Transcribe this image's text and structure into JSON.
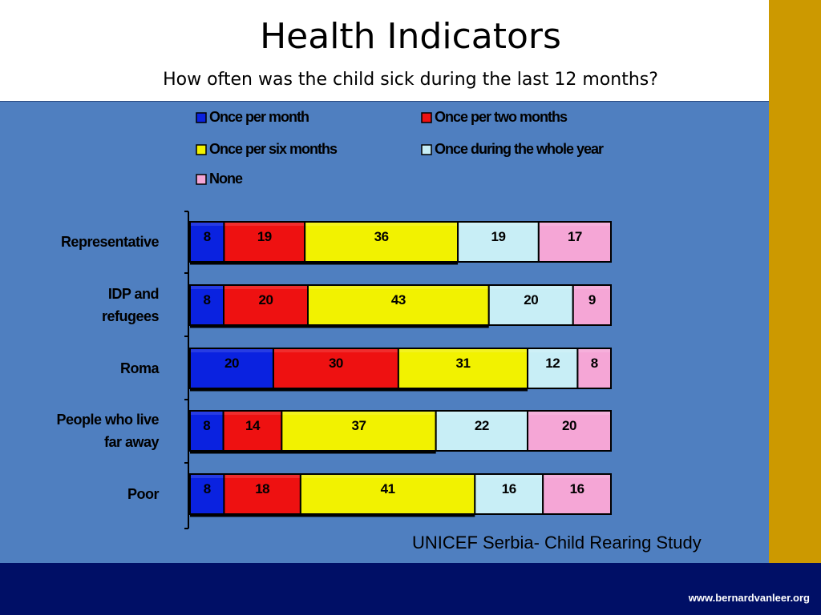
{
  "title": "Health Indicators",
  "subtitle": "How often was the child sick during the last 12 months?",
  "source": "UNICEF Serbia- Child Rearing Study",
  "footer_url": "www.bernardvanleer.org",
  "colors": {
    "background_panel": "#4f7fc0",
    "header_bg": "#ffffff",
    "accent_gold": "#cc9900",
    "footer_bg": "#000f66"
  },
  "chart_data": {
    "type": "bar",
    "orientation": "horizontal",
    "stacked": true,
    "categories": [
      [
        "Representative"
      ],
      [
        "IDP and",
        "refugees"
      ],
      [
        "Roma"
      ],
      [
        "People who live",
        "far away"
      ],
      [
        "Poor"
      ]
    ],
    "series": [
      {
        "name": "Once per month",
        "color": "#0a22e0",
        "values": [
          8,
          8,
          20,
          8,
          8
        ]
      },
      {
        "name": "Once per two months",
        "color": "#ee1111",
        "values": [
          19,
          20,
          30,
          14,
          18
        ]
      },
      {
        "name": "Once per six months",
        "color": "#f2f200",
        "values": [
          36,
          43,
          31,
          37,
          41
        ]
      },
      {
        "name": "Once during the whole year",
        "color": "#c8eef6",
        "values": [
          19,
          20,
          12,
          22,
          16
        ]
      },
      {
        "name": "None",
        "color": "#f5a6d6",
        "values": [
          17,
          9,
          8,
          20,
          16
        ]
      }
    ],
    "legend_position": "top",
    "grid": false
  }
}
